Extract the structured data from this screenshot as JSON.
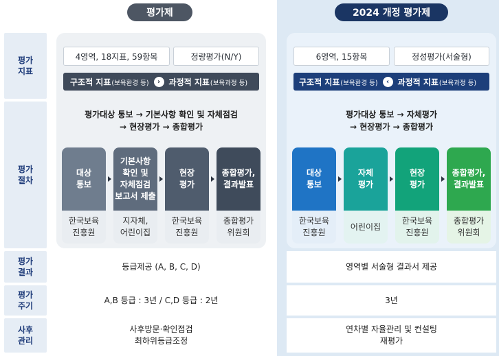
{
  "headers": {
    "old": "평가제",
    "new": "2024 개정 평가제"
  },
  "row_labels": {
    "indicator": [
      "평가",
      "지표"
    ],
    "procedure": [
      "평가",
      "절차"
    ],
    "result": [
      "평가",
      "결과"
    ],
    "cycle": [
      "평가",
      "주기"
    ],
    "followup": [
      "사후",
      "관리"
    ]
  },
  "old": {
    "indicator_left": "4영역, 18지표, 59항목",
    "indicator_right": "정량평가(N/Y)",
    "bar_a": "구조적 지표",
    "bar_a_small": "(보육환경 등)",
    "bar_b": "과정적 지표",
    "bar_b_small": "(보육과정 등)",
    "bar_icon": "›",
    "proc_line1": "평가대상 통보 → 기본사항 확인 및 자체점검",
    "proc_line2": "→ 현장평가 → 종합평가",
    "steps": [
      {
        "label": [
          "대상",
          "통보"
        ],
        "under": [
          "한국보육",
          "진흥원"
        ]
      },
      {
        "label": [
          "기본사항",
          "확인 및",
          "자체점검",
          "보고서 제출"
        ],
        "under": [
          "지자체,",
          "어린이집"
        ]
      },
      {
        "label": [
          "현장",
          "평가"
        ],
        "under": [
          "한국보육",
          "진흥원"
        ]
      },
      {
        "label": [
          "종합평가,",
          "결과발표"
        ],
        "under": [
          "종합평가",
          "위원회"
        ]
      }
    ],
    "result": "등급제공 (A, B, C, D)",
    "cycle": "A,B 등급 : 3년 / C,D 등급 : 2년",
    "followup": [
      "사후방문·확인점검",
      "최하위등급조정"
    ]
  },
  "new": {
    "indicator_left": "6영역, 15항목",
    "indicator_right": "정성평가(서술형)",
    "bar_a": "구조적 지표",
    "bar_a_small": "(보육환경 등)",
    "bar_b": "과정적 지표",
    "bar_b_small": "(보육과정 등)",
    "bar_icon": "‹",
    "proc_line1": "평가대상 통보 → 자체평가",
    "proc_line2": "→ 현장평가 → 종합평가",
    "steps": [
      {
        "label": [
          "대상",
          "통보"
        ],
        "under": [
          "한국보육",
          "진흥원"
        ]
      },
      {
        "label": [
          "자체",
          "평가"
        ],
        "under": [
          "어린이집"
        ]
      },
      {
        "label": [
          "현장",
          "평가"
        ],
        "under": [
          "한국보육",
          "진흥원"
        ]
      },
      {
        "label": [
          "종합평가,",
          "결과발표"
        ],
        "under": [
          "종합평가",
          "위원회"
        ]
      }
    ],
    "result": "영역별 서술형 결과서 제공",
    "cycle": "3년",
    "followup": [
      "연차별 자율관리 및 컨설팅",
      "재평가"
    ]
  },
  "colors": {
    "old_steps": [
      "#6f7d8e",
      "#5f6c7d",
      "#4f5c6d",
      "#3f4b5b"
    ],
    "old_steps_under_bg": "#e9edf1",
    "new_steps": [
      "#1f74c5",
      "#1aa39a",
      "#12a37a",
      "#2ea84f"
    ],
    "new_steps_under_bg": [
      "#e4eef8",
      "#e3f3f1",
      "#e2f3ec",
      "#e5f4e6"
    ]
  }
}
